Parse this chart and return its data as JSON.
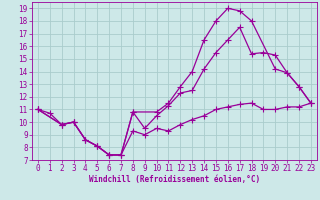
{
  "background_color": "#cde8e8",
  "grid_color": "#aacccc",
  "line_color": "#990099",
  "xlabel": "Windchill (Refroidissement éolien,°C)",
  "xlim": [
    -0.5,
    23.5
  ],
  "ylim": [
    7,
    19.5
  ],
  "xticks": [
    0,
    1,
    2,
    3,
    4,
    5,
    6,
    7,
    8,
    9,
    10,
    11,
    12,
    13,
    14,
    15,
    16,
    17,
    18,
    19,
    20,
    21,
    22,
    23
  ],
  "yticks": [
    7,
    8,
    9,
    10,
    11,
    12,
    13,
    14,
    15,
    16,
    17,
    18,
    19
  ],
  "line1_x": [
    0,
    1,
    2,
    3,
    4,
    5,
    6,
    7,
    8,
    9,
    10,
    11,
    12,
    13,
    14,
    15,
    16,
    17,
    18,
    19,
    20,
    21,
    22,
    23
  ],
  "line1_y": [
    11,
    10.7,
    9.8,
    10.0,
    8.6,
    8.1,
    7.4,
    7.4,
    9.3,
    9.0,
    9.5,
    9.3,
    9.8,
    10.2,
    10.5,
    11.0,
    11.2,
    11.4,
    11.5,
    11.0,
    11.0,
    11.2,
    11.2,
    11.5
  ],
  "line2_x": [
    0,
    2,
    3,
    4,
    5,
    6,
    7,
    8,
    9,
    10,
    11,
    12,
    13,
    14,
    15,
    16,
    17,
    18,
    19,
    20,
    21,
    22,
    23
  ],
  "line2_y": [
    11,
    9.8,
    10.0,
    8.6,
    8.1,
    7.4,
    7.4,
    10.8,
    9.5,
    10.5,
    11.3,
    12.3,
    12.5,
    14.2,
    15.5,
    16.5,
    17.5,
    15.4,
    15.5,
    15.3,
    13.9,
    12.8,
    11.5
  ],
  "line3_x": [
    0,
    2,
    3,
    4,
    5,
    6,
    7,
    8,
    10,
    11,
    12,
    13,
    14,
    15,
    16,
    17,
    18,
    20,
    21,
    22,
    23
  ],
  "line3_y": [
    11,
    9.8,
    10.0,
    8.6,
    8.1,
    7.4,
    7.4,
    10.8,
    10.8,
    11.5,
    12.8,
    14.0,
    16.5,
    18.0,
    19.0,
    18.8,
    18.0,
    14.2,
    13.9,
    12.8,
    11.5
  ],
  "marker": "+",
  "markersize": 4,
  "linewidth": 0.9,
  "tick_fontsize": 5.5
}
